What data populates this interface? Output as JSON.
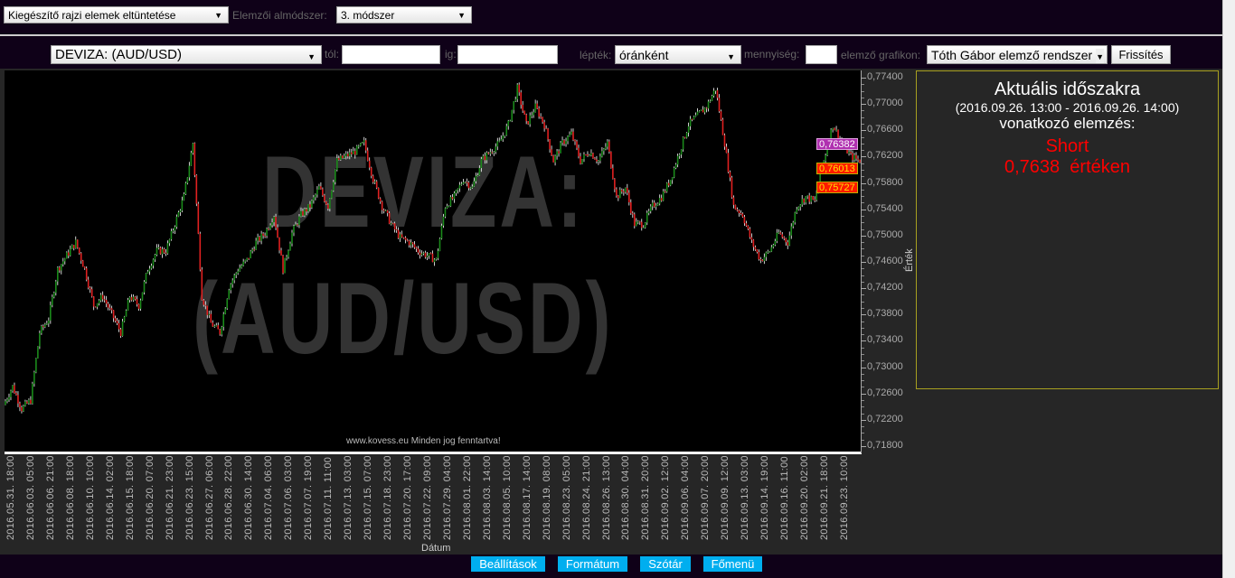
{
  "toolbar1": {
    "drawing_select": "Kiegészítő rajzi elemek eltüntetése",
    "submethod_label": "Elemzői almódszer:",
    "submethod_select": "3. módszer"
  },
  "toolbar2": {
    "instrument_select": "DEVIZA: (AUD/USD)",
    "from_label": "tól:",
    "from_value": "",
    "to_label": "ig:",
    "to_value": "",
    "scale_label": "lépték:",
    "scale_select": "óránként",
    "quantity_label": "mennyiség:",
    "quantity_value": "",
    "chart_label": "elemző grafikon:",
    "chart_select": "Tóth Gábor elemző rendszer",
    "refresh": "Frissítés"
  },
  "watermark": {
    "line1": "DEVIZA:",
    "line2": "(AUD/USD)",
    "copyright": "www.kovess.eu Minden jog fenntartva!"
  },
  "info": {
    "title": "Aktuális időszakra",
    "period": "(2016.09.26. 13:00 - 2016.09.26. 14:00)",
    "subtitle": "vonatkozó elemzés:",
    "signal": "Short",
    "value": "0,7638  értéken",
    "signal_color": "#ff0000"
  },
  "markers": [
    {
      "label": "0,76382",
      "color": "#b030b0"
    },
    {
      "label": "0,76013",
      "color": "#ff1a00"
    },
    {
      "label": "0,75727",
      "color": "#ff1a00"
    }
  ],
  "footer": {
    "settings": "Beállítások",
    "format": "Formátum",
    "dictionary": "Szótár",
    "main_menu": "Főmenü"
  },
  "chart_data": {
    "type": "candlestick",
    "xlabel": "Dátum",
    "ylabel": "Érték",
    "ylim": [
      0.718,
      0.774
    ],
    "yticks": [
      "0,77400",
      "0,77000",
      "0,76600",
      "0,76200",
      "0,75800",
      "0,75400",
      "0,75000",
      "0,74600",
      "0,74200",
      "0,73800",
      "0,73400",
      "0,73000",
      "0,72600",
      "0,72200",
      "0,71800"
    ],
    "xticks": [
      "2016.05.31. 18:00",
      "2016.06.03. 05:00",
      "2016.06.06. 21:00",
      "2016.06.08. 18:00",
      "2016.06.10. 10:00",
      "2016.06.14. 02:00",
      "2016.06.15. 18:00",
      "2016.06.20. 07:00",
      "2016.06.21. 23:00",
      "2016.06.23. 15:00",
      "2016.06.27. 06:00",
      "2016.06.28. 22:00",
      "2016.06.30. 14:00",
      "2016.07.04. 06:00",
      "2016.07.06. 03:00",
      "2016.07.07. 19:00",
      "2016.07.11. 11:00",
      "2016.07.13. 03:00",
      "2016.07.15. 07:00",
      "2016.07.18. 23:00",
      "2016.07.20. 17:00",
      "2016.07.22. 09:00",
      "2016.07.29. 04:00",
      "2016.08.01. 22:00",
      "2016.08.03. 14:00",
      "2016.08.05. 10:00",
      "2016.08.17. 14:00",
      "2016.08.19. 08:00",
      "2016.08.23. 05:00",
      "2016.08.24. 21:00",
      "2016.08.26. 13:00",
      "2016.08.30. 04:00",
      "2016.08.31. 20:00",
      "2016.09.02. 12:00",
      "2016.09.06. 04:00",
      "2016.09.07. 20:00",
      "2016.09.09. 12:00",
      "2016.09.13. 03:00",
      "2016.09.14. 19:00",
      "2016.09.16. 11:00",
      "2016.09.20. 02:00",
      "2016.09.21. 18:00",
      "2016.09.23. 10:00"
    ],
    "close": [
      0.724,
      0.7268,
      0.7234,
      0.7247,
      0.735,
      0.7371,
      0.7446,
      0.7467,
      0.7487,
      0.7446,
      0.7391,
      0.7405,
      0.7378,
      0.735,
      0.7405,
      0.7391,
      0.7446,
      0.7474,
      0.7474,
      0.7515,
      0.7556,
      0.7638,
      0.7405,
      0.7364,
      0.735,
      0.7419,
      0.7446,
      0.746,
      0.7487,
      0.7501,
      0.7529,
      0.7446,
      0.7501,
      0.7529,
      0.7542,
      0.757,
      0.7542,
      0.7611,
      0.7618,
      0.7625,
      0.7638,
      0.7583,
      0.7542,
      0.7515,
      0.7494,
      0.7487,
      0.7474,
      0.7467,
      0.746,
      0.7542,
      0.7556,
      0.7583,
      0.757,
      0.7611,
      0.7625,
      0.7638,
      0.7666,
      0.7721,
      0.7666,
      0.7693,
      0.7666,
      0.7611,
      0.7638,
      0.7652,
      0.7611,
      0.7625,
      0.7611,
      0.7638,
      0.7556,
      0.757,
      0.7515,
      0.7515,
      0.7542,
      0.7556,
      0.7583,
      0.7625,
      0.7666,
      0.768,
      0.7693,
      0.7721,
      0.7638,
      0.7542,
      0.7529,
      0.7487,
      0.746,
      0.7474,
      0.7501,
      0.7487,
      0.7542,
      0.7556,
      0.7549,
      0.7611,
      0.7666,
      0.7638,
      0.7618,
      0.7611
    ],
    "colors": {
      "up": "#1a8a1a",
      "down": "#e02020",
      "wick": "#ffffff"
    }
  }
}
